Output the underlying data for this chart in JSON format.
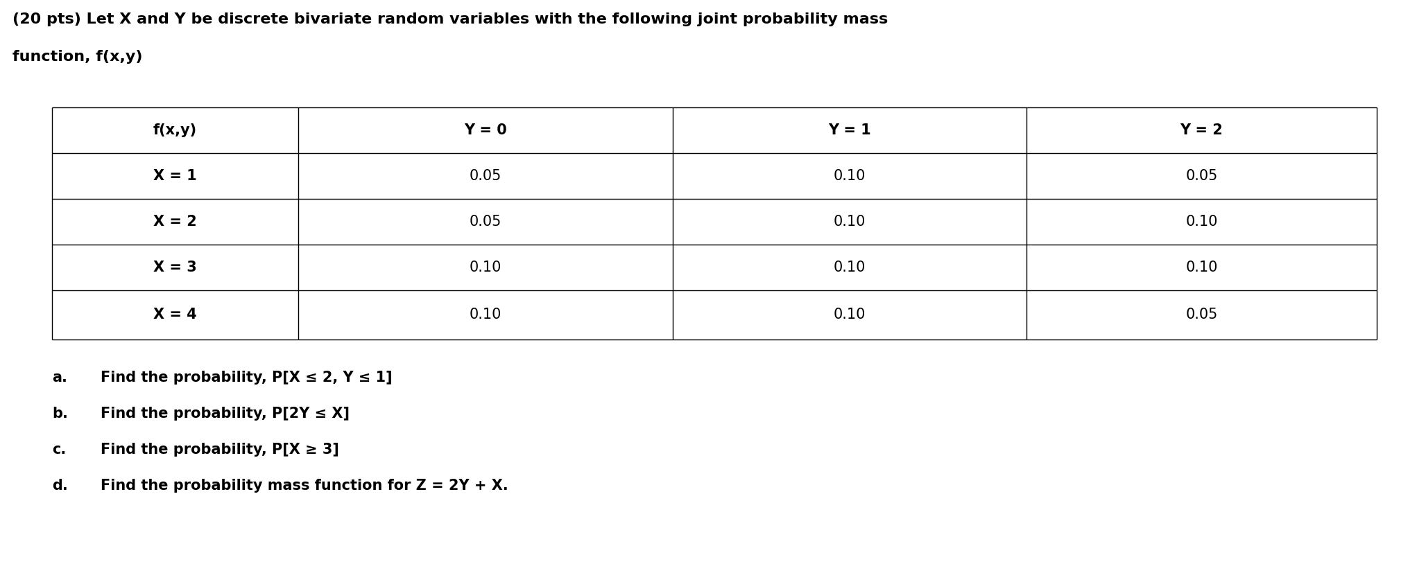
{
  "title_line1": "(20 pts) Let X and Y be discrete bivariate random variables with the following joint probability mass",
  "title_line2": "function, f(x,y)",
  "table_headers": [
    "f(x,y)",
    "Y = 0",
    "Y = 1",
    "Y = 2"
  ],
  "table_rows": [
    [
      "X = 1",
      "0.05",
      "0.10",
      "0.05"
    ],
    [
      "X = 2",
      "0.05",
      "0.10",
      "0.10"
    ],
    [
      "X = 3",
      "0.10",
      "0.10",
      "0.10"
    ],
    [
      "X = 4",
      "0.10",
      "0.10",
      "0.05"
    ]
  ],
  "question_labels": [
    "a.",
    "b.",
    "c.",
    "d."
  ],
  "question_texts": [
    "Find the probability, P[X ≤ 2, Y ≤ 1]",
    "Find the probability, P[2Y ≤ X]",
    "Find the probability, P[X ≥ 3]",
    "Find the probability mass function for Z = 2Y + X."
  ],
  "bg_color": "#ffffff",
  "text_color": "#000000",
  "font_size_title": 16,
  "font_size_table": 15,
  "font_size_questions": 15
}
